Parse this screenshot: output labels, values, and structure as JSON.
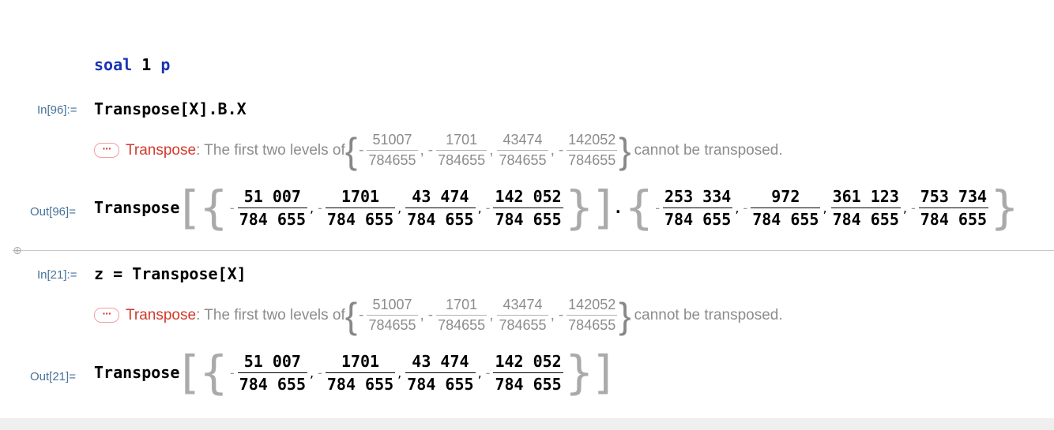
{
  "title_cell": {
    "word1": "soal",
    "num": "1",
    "word2": "p"
  },
  "cell1": {
    "in_label": "In[96]:=",
    "input": "Transpose[X].B.X",
    "message": {
      "dots": "···",
      "tag": "Transpose",
      "text_before": ": The first two levels of",
      "text_after": "cannot be transposed.",
      "fractions": [
        {
          "sign": "-",
          "num": "51007",
          "den": "784655"
        },
        {
          "sign": "-",
          "num": "1701",
          "den": "784655"
        },
        {
          "sign": "",
          "num": "43474",
          "den": "784655"
        },
        {
          "sign": "-",
          "num": "142052",
          "den": "784655"
        }
      ]
    },
    "out_label": "Out[96]=",
    "output_head": "Transpose",
    "output_list1": [
      {
        "sign": "-",
        "num": "51 007",
        "den": "784 655"
      },
      {
        "sign": "-",
        "num": "1701",
        "den": "784 655"
      },
      {
        "sign": "",
        "num": "43 474",
        "den": "784 655"
      },
      {
        "sign": "-",
        "num": "142 052",
        "den": "784 655"
      }
    ],
    "dot": ".",
    "output_list2": [
      {
        "sign": "-",
        "num": "253 334",
        "den": "784 655"
      },
      {
        "sign": "-",
        "num": "972",
        "den": "784 655"
      },
      {
        "sign": "",
        "num": "361 123",
        "den": "784 655"
      },
      {
        "sign": "-",
        "num": "753 734",
        "den": "784 655"
      }
    ]
  },
  "cell2": {
    "in_label": "In[21]:=",
    "input": "z = Transpose[X]",
    "message": {
      "dots": "···",
      "tag": "Transpose",
      "text_before": ": The first two levels of",
      "text_after": "cannot be transposed.",
      "fractions": [
        {
          "sign": "-",
          "num": "51007",
          "den": "784655"
        },
        {
          "sign": "-",
          "num": "1701",
          "den": "784655"
        },
        {
          "sign": "",
          "num": "43474",
          "den": "784655"
        },
        {
          "sign": "-",
          "num": "142052",
          "den": "784655"
        }
      ]
    },
    "out_label": "Out[21]=",
    "output_head": "Transpose",
    "output_list1": [
      {
        "sign": "-",
        "num": "51 007",
        "den": "784 655"
      },
      {
        "sign": "-",
        "num": "1701",
        "den": "784 655"
      },
      {
        "sign": "",
        "num": "43 474",
        "den": "784 655"
      },
      {
        "sign": "-",
        "num": "142 052",
        "den": "784 655"
      }
    ]
  },
  "cell_insert_icon": "plus-icon",
  "colors": {
    "label": "#46729a",
    "keyword_blue": "#1a33b4",
    "message_red": "#d2392b",
    "message_gray": "#8c8c8c"
  }
}
